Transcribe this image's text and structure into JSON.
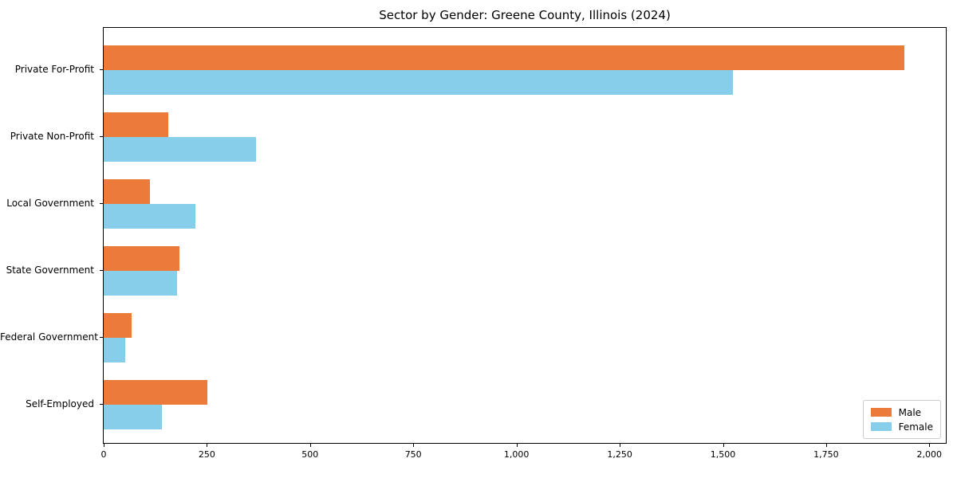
{
  "title": "Sector by Gender: Greene County, Illinois (2024)",
  "chart_data": {
    "type": "bar",
    "orientation": "horizontal",
    "title": "Sector by Gender: Greene County, Illinois (2024)",
    "xlabel": "",
    "ylabel": "",
    "categories": [
      "Private For-Profit",
      "Private Non-Profit",
      "Local Government",
      "State Government",
      "Federal Government",
      "Self-Employed"
    ],
    "series": [
      {
        "name": "Male",
        "color": "#ec7a3b",
        "values": [
          1940,
          157,
          111,
          183,
          67,
          252
        ]
      },
      {
        "name": "Female",
        "color": "#87ceeb",
        "values": [
          1525,
          368,
          223,
          178,
          53,
          140
        ]
      }
    ],
    "xlim": [
      0,
      2040
    ],
    "xticks": [
      0,
      250,
      500,
      750,
      1000,
      1250,
      1500,
      1750,
      2000
    ],
    "xtick_labels": [
      "0",
      "250",
      "500",
      "750",
      "1,000",
      "1,250",
      "1,500",
      "1,750",
      "2,000"
    ],
    "grid": false,
    "legend_position": "lower right",
    "frame": "full-box"
  },
  "legend": {
    "items": [
      {
        "label": "Male",
        "color": "#ec7a3b"
      },
      {
        "label": "Female",
        "color": "#87ceeb"
      }
    ]
  }
}
